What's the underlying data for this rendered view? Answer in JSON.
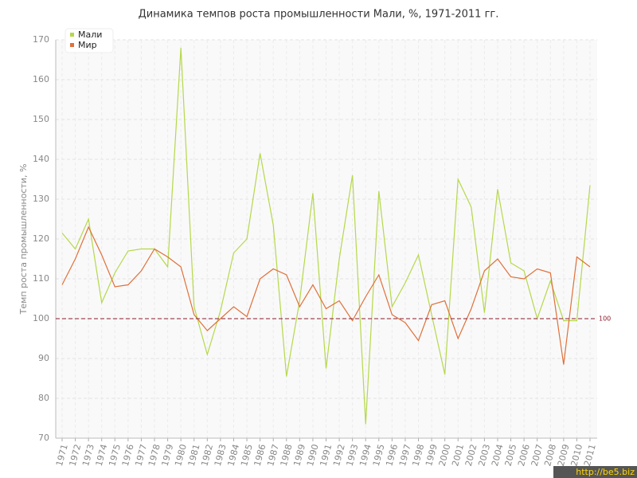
{
  "chart_data": {
    "type": "line",
    "title": "Динамика темпов роста промышленности Мали, %, 1971-2011 гг.",
    "y_label": "Темп роста промышленности, %",
    "categories": [
      "1971",
      "1972",
      "1973",
      "1974",
      "1975",
      "1976",
      "1977",
      "1978",
      "1979",
      "1980",
      "1981",
      "1982",
      "1983",
      "1984",
      "1985",
      "1986",
      "1987",
      "1988",
      "1989",
      "1990",
      "1991",
      "1992",
      "1993",
      "1994",
      "1995",
      "1996",
      "1997",
      "1998",
      "1999",
      "2000",
      "2001",
      "2002",
      "2003",
      "2004",
      "2005",
      "2006",
      "2007",
      "2008",
      "2009",
      "2010",
      "2011"
    ],
    "series": [
      {
        "name": "Мали",
        "color": "#b5d84a",
        "values": [
          121.5,
          117.5,
          125,
          104,
          111.5,
          117,
          117.5,
          117.5,
          113,
          168,
          103,
          91,
          102,
          116.5,
          120,
          141.5,
          123.5,
          85.5,
          104.5,
          131.5,
          87.5,
          115,
          136,
          73.5,
          132,
          103,
          109,
          116,
          101,
          86,
          135,
          128,
          101.5,
          132.5,
          114,
          112,
          100,
          109.5,
          99.5,
          99.5,
          133.5
        ]
      },
      {
        "name": "Мир",
        "color": "#e0703a",
        "values": [
          108.5,
          115,
          123,
          116,
          108,
          108.5,
          112,
          117.5,
          115.5,
          113,
          101,
          97,
          100,
          103,
          100.5,
          110,
          112.5,
          111,
          103,
          108.5,
          102.5,
          104.5,
          99.5,
          105.5,
          111,
          101,
          99,
          94.5,
          103.5,
          104.5,
          95,
          102.5,
          112,
          115,
          110.5,
          110,
          112.5,
          111.5,
          88.5,
          115.5,
          113
        ]
      }
    ],
    "ylim": [
      70,
      170
    ],
    "yticks": [
      70,
      80,
      90,
      100,
      110,
      120,
      130,
      140,
      150,
      160,
      170
    ],
    "grid": true,
    "legend": "top-left",
    "reference_line": 100,
    "reference_color": "#8b1a2b",
    "watermark": "http://be5.biz"
  }
}
